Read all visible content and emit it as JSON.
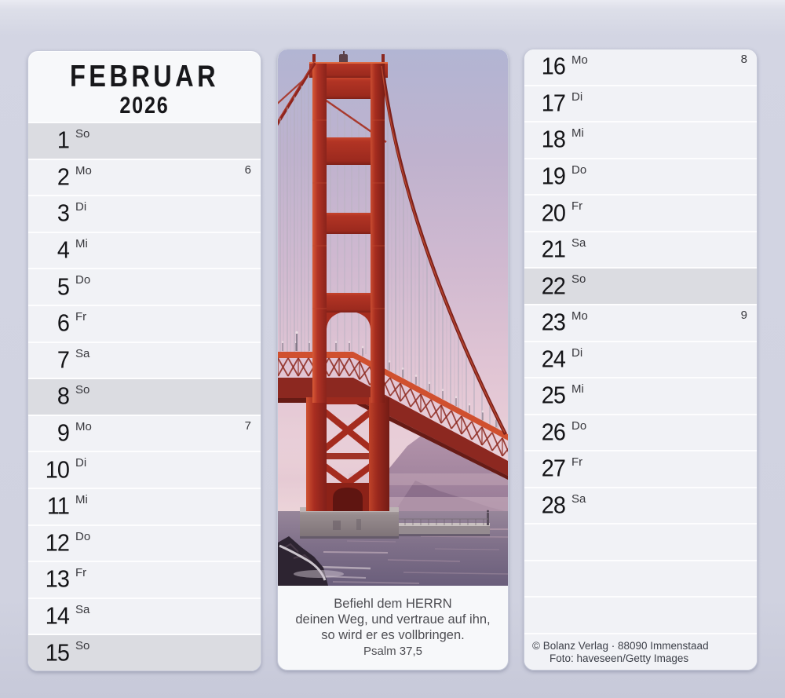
{
  "colors": {
    "page_background": "#d3d5e3",
    "card_background": "#f7f8fa",
    "row_background": "#f1f2f6",
    "sunday_row_background": "#dbdce1",
    "row_separator": "#fdfdfe",
    "number_color": "#141417",
    "label_color": "#37373c",
    "verse_color": "#4d4d52",
    "credit_color": "#3d4049",
    "bridge_red": "#b5372a",
    "sky_top": "#b2b5d3",
    "sky_bottom_pink": "#efd8da",
    "water": "#7d7089"
  },
  "calendar": {
    "month": "FEBRUAR",
    "year": "2026",
    "left_rows": [
      {
        "day": "1",
        "weekday": "So",
        "sunday": true
      },
      {
        "day": "2",
        "weekday": "Mo",
        "week": "6"
      },
      {
        "day": "3",
        "weekday": "Di"
      },
      {
        "day": "4",
        "weekday": "Mi"
      },
      {
        "day": "5",
        "weekday": "Do"
      },
      {
        "day": "6",
        "weekday": "Fr"
      },
      {
        "day": "7",
        "weekday": "Sa"
      },
      {
        "day": "8",
        "weekday": "So",
        "sunday": true
      },
      {
        "day": "9",
        "weekday": "Mo",
        "week": "7"
      },
      {
        "day": "10",
        "weekday": "Di"
      },
      {
        "day": "11",
        "weekday": "Mi"
      },
      {
        "day": "12",
        "weekday": "Do"
      },
      {
        "day": "13",
        "weekday": "Fr"
      },
      {
        "day": "14",
        "weekday": "Sa"
      },
      {
        "day": "15",
        "weekday": "So",
        "sunday": true
      }
    ],
    "right_rows": [
      {
        "day": "16",
        "weekday": "Mo",
        "week": "8"
      },
      {
        "day": "17",
        "weekday": "Di"
      },
      {
        "day": "18",
        "weekday": "Mi"
      },
      {
        "day": "19",
        "weekday": "Do"
      },
      {
        "day": "20",
        "weekday": "Fr"
      },
      {
        "day": "21",
        "weekday": "Sa"
      },
      {
        "day": "22",
        "weekday": "So",
        "sunday": true
      },
      {
        "day": "23",
        "weekday": "Mo",
        "week": "9"
      },
      {
        "day": "24",
        "weekday": "Di"
      },
      {
        "day": "25",
        "weekday": "Mi"
      },
      {
        "day": "26",
        "weekday": "Do"
      },
      {
        "day": "27",
        "weekday": "Fr"
      },
      {
        "day": "28",
        "weekday": "Sa"
      }
    ],
    "right_panel_empty_rows": 3
  },
  "photo_card": {
    "description": "Golden Gate Bridge tower, suspension cables and deck above the water at dusk",
    "verse_lines": [
      "Befiehl dem HERRN",
      "deinen Weg, und vertraue auf ihn,",
      "so wird er es vollbringen."
    ],
    "verse_reference": "Psalm 37,5"
  },
  "credits": {
    "line1": "© Bolanz Verlag · 88090 Immenstaad",
    "line2": "Foto: haveseen/Getty Images"
  }
}
